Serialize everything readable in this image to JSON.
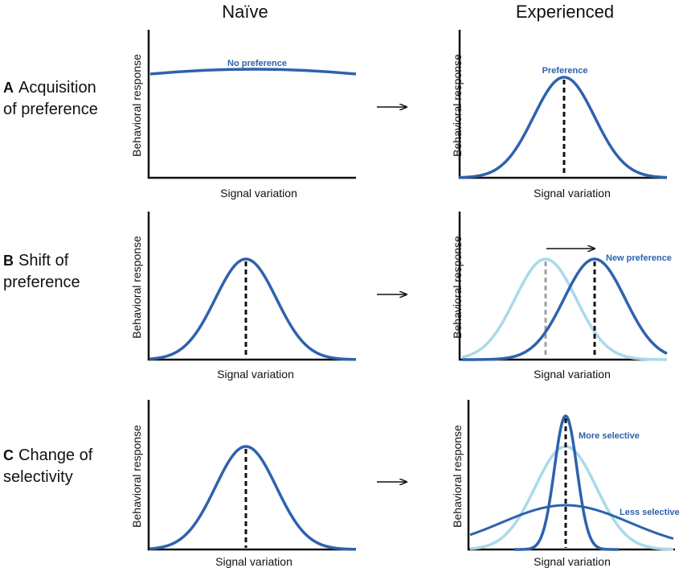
{
  "headers": {
    "naive": "Naïve",
    "experienced": "Experienced"
  },
  "rows": [
    {
      "letter": "A",
      "line1": "Acquisition",
      "line2": "of preference"
    },
    {
      "letter": "B",
      "line1": "Shift of",
      "line2": "preference"
    },
    {
      "letter": "C",
      "line1": "Change of",
      "line2": "selectivity"
    }
  ],
  "axes": {
    "ylabel": "Behavioral response",
    "xlabel": "Signal variation"
  },
  "annotations": {
    "no_preference": "No preference",
    "preference": "Preference",
    "new_preference": "New preference",
    "more_selective": "More selective",
    "less_selective": "Less selective"
  },
  "colors": {
    "dark_blue": "#2e62ac",
    "light_blue": "#a8daea",
    "axis": "#111111",
    "gray_dash": "#a0a0a0"
  }
}
